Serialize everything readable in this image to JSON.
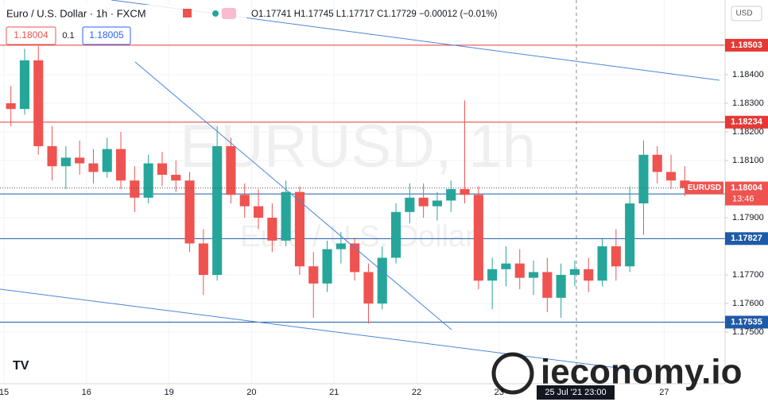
{
  "chart_data": {
    "type": "candlestick",
    "title": "Euro / U.S. Dollar · 1h · FXCM",
    "ohlc_text": "O1.17741 H1.17745 L1.17717 C1.17729 −0.00012 (−0.01%)",
    "sell_price": "1.18004",
    "spread": "0.1",
    "buy_price": "1.18005",
    "currency": "USD",
    "watermark": "EURUSD, 1h",
    "watermark_sub": "Euro / U.S. Dollar",
    "logo": "ieconomy.io",
    "crosshair_label": "25 Jul '21   23:00",
    "symbol": "EURUSD",
    "countdown": "13:46",
    "up_color": "#26a69a",
    "down_color": "#ef5350",
    "ylim": [
      1.17328,
      1.18661
    ],
    "yticks": [
      {
        "value": 1.175,
        "label": "1.17500"
      },
      {
        "value": 1.176,
        "label": "1.17600"
      },
      {
        "value": 1.177,
        "label": "1.17700"
      },
      {
        "value": 1.179,
        "label": "1.17900"
      },
      {
        "value": 1.181,
        "label": "1.18100"
      },
      {
        "value": 1.182,
        "label": "1.18200"
      },
      {
        "value": 1.183,
        "label": "1.18300"
      },
      {
        "value": 1.184,
        "label": "1.18400"
      }
    ],
    "grid": true,
    "current_price": 1.18004,
    "levels": [
      {
        "value": 1.18503,
        "color": "#e53935"
      },
      {
        "value": 1.18234,
        "color": "#e53935"
      },
      {
        "value": 1.17983,
        "color": "#1e5aa8"
      },
      {
        "value": 1.17827,
        "color": "#1e5aa8"
      },
      {
        "value": 1.17535,
        "color": "#1e5aa8"
      }
    ],
    "categories": [
      "15",
      null,
      null,
      null,
      null,
      null,
      "16",
      null,
      null,
      null,
      null,
      null,
      "19",
      null,
      null,
      null,
      null,
      null,
      "20",
      null,
      null,
      null,
      null,
      null,
      "21",
      null,
      null,
      null,
      null,
      null,
      "22",
      null,
      null,
      null,
      null,
      null,
      "23",
      null,
      null,
      null,
      null,
      null,
      null,
      null,
      null,
      null,
      null,
      null,
      "27",
      null
    ],
    "open": [
      1.183,
      1.1828,
      1.1845,
      1.1815,
      1.1808,
      1.1811,
      1.1809,
      1.1806,
      1.1814,
      1.1803,
      1.1797,
      1.1809,
      1.1805,
      1.1803,
      1.1781,
      1.177,
      1.1815,
      1.1798,
      1.1794,
      1.179,
      1.1782,
      1.1799,
      1.1773,
      1.1767,
      1.1779,
      1.1781,
      1.1771,
      1.176,
      1.1776,
      1.1792,
      1.1797,
      1.1794,
      1.1796,
      1.18,
      1.1798,
      1.1768,
      1.1772,
      1.1774,
      1.1769,
      1.1771,
      1.1762,
      1.177,
      1.1772,
      1.1768,
      1.178,
      1.1773,
      1.1795,
      1.1812,
      1.1806,
      1.1803
    ],
    "high": [
      1.1836,
      1.1849,
      1.185,
      1.1822,
      1.1815,
      1.1817,
      1.1814,
      1.1818,
      1.182,
      1.1808,
      1.1812,
      1.1813,
      1.181,
      1.1806,
      1.1786,
      1.1822,
      1.1818,
      1.1802,
      1.18,
      1.1795,
      1.1803,
      1.1801,
      1.1778,
      1.1782,
      1.1785,
      1.1783,
      1.1774,
      1.178,
      1.1795,
      1.1802,
      1.1802,
      1.1799,
      1.1803,
      1.1831,
      1.1801,
      1.1776,
      1.178,
      1.1779,
      1.1775,
      1.1776,
      1.1774,
      1.1775,
      1.1776,
      1.1783,
      1.1786,
      1.1801,
      1.1817,
      1.1815,
      1.1812,
      1.1808
    ],
    "low": [
      1.1822,
      1.1826,
      1.1812,
      1.1803,
      1.18,
      1.1805,
      1.1802,
      1.1804,
      1.18,
      1.1792,
      1.1795,
      1.1801,
      1.1799,
      1.1778,
      1.1763,
      1.1768,
      1.1795,
      1.179,
      1.1786,
      1.1778,
      1.178,
      1.177,
      1.1755,
      1.1764,
      1.1774,
      1.1768,
      1.1753,
      1.1758,
      1.1774,
      1.1788,
      1.179,
      1.1789,
      1.1792,
      1.1795,
      1.1765,
      1.1758,
      1.1766,
      1.1765,
      1.1763,
      1.1757,
      1.1755,
      1.1766,
      1.1764,
      1.1766,
      1.1768,
      1.1771,
      1.1784,
      1.1802,
      1.18,
      1.17975
    ],
    "close": [
      1.1828,
      1.1845,
      1.1815,
      1.1808,
      1.1811,
      1.1809,
      1.1806,
      1.1814,
      1.1803,
      1.1797,
      1.1809,
      1.1805,
      1.1803,
      1.1781,
      1.177,
      1.1815,
      1.1798,
      1.1794,
      1.179,
      1.1782,
      1.1799,
      1.1773,
      1.1767,
      1.1779,
      1.1781,
      1.1771,
      1.176,
      1.1776,
      1.1792,
      1.1797,
      1.1794,
      1.1796,
      1.18,
      1.1798,
      1.1768,
      1.1772,
      1.1774,
      1.1769,
      1.1771,
      1.1762,
      1.177,
      1.1772,
      1.1768,
      1.178,
      1.1773,
      1.1795,
      1.1812,
      1.1806,
      1.1803,
      1.18004
    ]
  }
}
